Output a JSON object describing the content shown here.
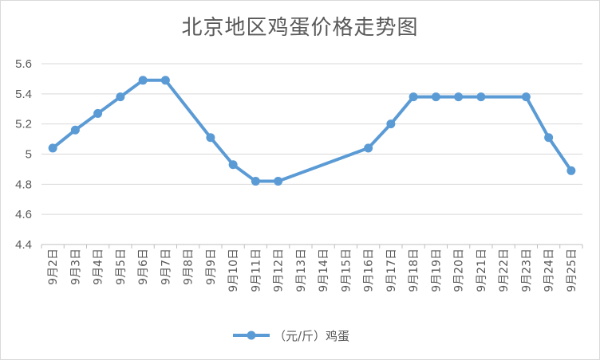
{
  "chart_data": {
    "type": "line",
    "title": "北京地区鸡蛋价格走势图",
    "xlabel": "",
    "ylabel": "",
    "categories": [
      "9月2日",
      "9月3日",
      "9月4日",
      "9月5日",
      "9月6日",
      "9月7日",
      "9月8日",
      "9月9日",
      "9月10日",
      "9月11日",
      "9月12日",
      "9月13日",
      "9月14日",
      "9月15日",
      "9月16日",
      "9月17日",
      "9月18日",
      "9月19日",
      "9月20日",
      "9月21日",
      "9月22日",
      "9月23日",
      "9月24日",
      "9月25日"
    ],
    "series": [
      {
        "name": "（元/斤）鸡蛋",
        "color": "#5b9bd5",
        "values": [
          5.04,
          5.16,
          5.27,
          5.38,
          5.49,
          5.49,
          null,
          5.11,
          4.93,
          4.82,
          4.82,
          null,
          null,
          null,
          5.04,
          5.2,
          5.38,
          5.38,
          5.38,
          5.38,
          null,
          5.38,
          5.11,
          4.89
        ]
      }
    ],
    "ylim": [
      4.4,
      5.6
    ],
    "yticks": [
      "4.4",
      "4.6",
      "4.8",
      "5",
      "5.2",
      "5.4",
      "5.6"
    ],
    "grid": true,
    "legend": "bottom"
  }
}
